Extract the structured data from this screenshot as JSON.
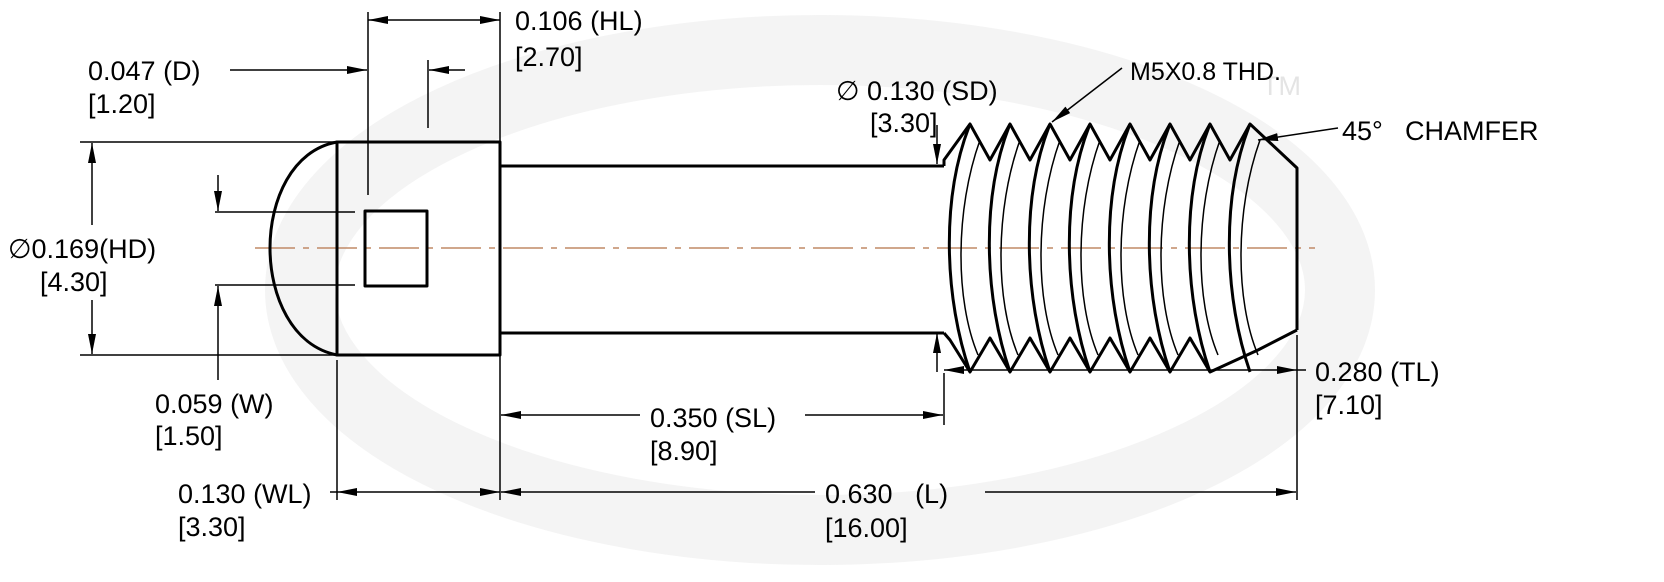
{
  "dimensions": [
    {
      "label": "0.106 (HL)",
      "metric": "[2.70]"
    },
    {
      "label": "0.047 (D)",
      "metric": "[1.20]"
    },
    {
      "label": "∅ 0.130 (SD)",
      "metric": "[3.30]"
    },
    {
      "label": "∅0.169(HD)",
      "metric": "[4.30]"
    },
    {
      "label": "0.059 (W)",
      "metric": "[1.50]"
    },
    {
      "label": "0.350 (SL)",
      "metric": "[8.90]"
    },
    {
      "label": "0.280 (TL)",
      "metric": "[7.10]"
    },
    {
      "label": "0.130 (WL)",
      "metric": "[3.30]"
    },
    {
      "label": "0.630   (L)",
      "metric": "[16.00]"
    }
  ],
  "notes": {
    "thread": "M5X0.8 THD.",
    "chamfer_angle": "45°",
    "chamfer": "CHAMFER"
  },
  "watermark": "TM"
}
